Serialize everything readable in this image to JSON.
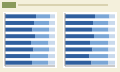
{
  "chart_data": [
    {
      "type": "bar",
      "orientation": "horizontal",
      "stacked": true,
      "tick_labels": false,
      "grid": false,
      "categories": [
        null,
        null,
        null,
        null,
        null,
        null,
        null,
        null
      ],
      "xlim": [
        0,
        100
      ],
      "series": [
        {
          "color": "#2f5f9e",
          "values": [
            62,
            58,
            55,
            60,
            52,
            57,
            50,
            54
          ]
        },
        {
          "color": "#7aa6d6",
          "values": [
            28,
            30,
            33,
            29,
            35,
            31,
            36,
            32
          ]
        },
        {
          "color": "#c9d9ec",
          "values": [
            10,
            12,
            12,
            11,
            13,
            12,
            14,
            14
          ]
        }
      ]
    },
    {
      "type": "bar",
      "orientation": "horizontal",
      "stacked": true,
      "tick_labels": false,
      "grid": false,
      "categories": [
        null,
        null,
        null,
        null,
        null,
        null,
        null,
        null
      ],
      "xlim": [
        0,
        100
      ],
      "series": [
        {
          "color": "#2f5f9e",
          "values": [
            60,
            56,
            54,
            58,
            50,
            55,
            49,
            53
          ]
        },
        {
          "color": "#7aa6d6",
          "values": [
            29,
            31,
            33,
            30,
            36,
            32,
            37,
            33
          ]
        },
        {
          "color": "#c9d9ec",
          "values": [
            11,
            13,
            13,
            12,
            14,
            13,
            14,
            14
          ]
        }
      ]
    }
  ]
}
